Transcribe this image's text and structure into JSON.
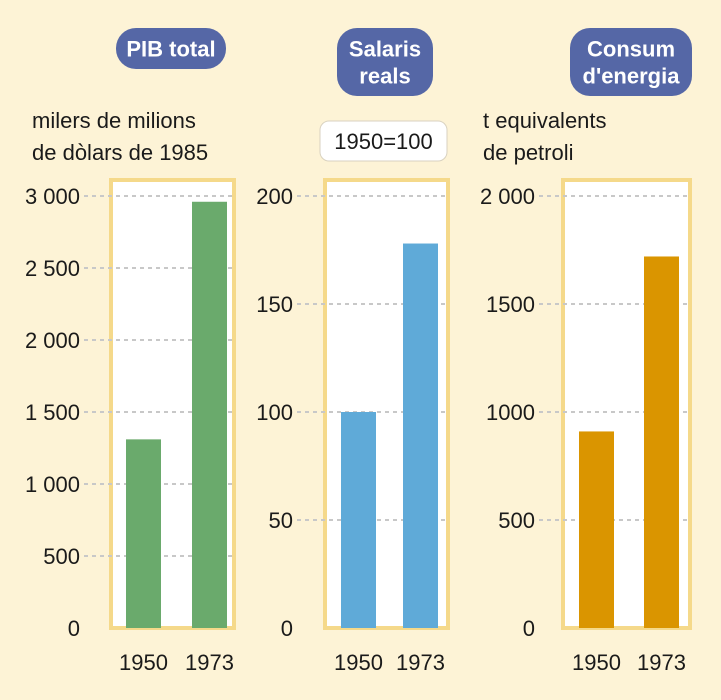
{
  "colors": {
    "background": "#fdf3d6",
    "frame": "#f5d98a",
    "badge": "#5567a6",
    "badge_text": "#ffffff",
    "grid": "#c8c8c8",
    "text": "#1a1a1a",
    "pib_bar": "#6aaa6c",
    "salaris_bar": "#5faad8",
    "energia_bar": "#da9500"
  },
  "chart_data": [
    {
      "type": "bar",
      "title": "PIB total",
      "ylabel": "milers de milions de dòlars de 1985",
      "ylabel_lines": [
        "milers de milions",
        "de dòlars de 1985"
      ],
      "categories": [
        "1950",
        "1973"
      ],
      "values": [
        1310,
        2960
      ],
      "ylim": [
        0,
        3000
      ],
      "yticks": [
        0,
        500,
        1000,
        1500,
        2000,
        2500,
        3000
      ],
      "ytick_labels": [
        "0",
        "500",
        "1 000",
        "1 500",
        "2 000",
        "2 500",
        "3 000"
      ],
      "grid": true,
      "color": "#6aaa6c"
    },
    {
      "type": "bar",
      "title": "Salaris reals",
      "title_lines": [
        "Salaris",
        "reals"
      ],
      "note": "1950=100",
      "categories": [
        "1950",
        "1973"
      ],
      "values": [
        100,
        178
      ],
      "ylim": [
        0,
        200
      ],
      "yticks": [
        0,
        50,
        100,
        150,
        200
      ],
      "ytick_labels": [
        "0",
        "50",
        "100",
        "150",
        "200"
      ],
      "grid": true,
      "color": "#5faad8"
    },
    {
      "type": "bar",
      "title": "Consum d'energia",
      "title_lines": [
        "Consum",
        "d'energia"
      ],
      "ylabel": "t equivalents de petroli",
      "ylabel_lines": [
        "t equivalents",
        "de petroli"
      ],
      "categories": [
        "1950",
        "1973"
      ],
      "values": [
        910,
        1720
      ],
      "ylim": [
        0,
        2000
      ],
      "yticks": [
        0,
        500,
        1000,
        1500,
        2000
      ],
      "ytick_labels": [
        "0",
        "500",
        "1000",
        "1500",
        "2 000"
      ],
      "grid": true,
      "color": "#da9500"
    }
  ]
}
